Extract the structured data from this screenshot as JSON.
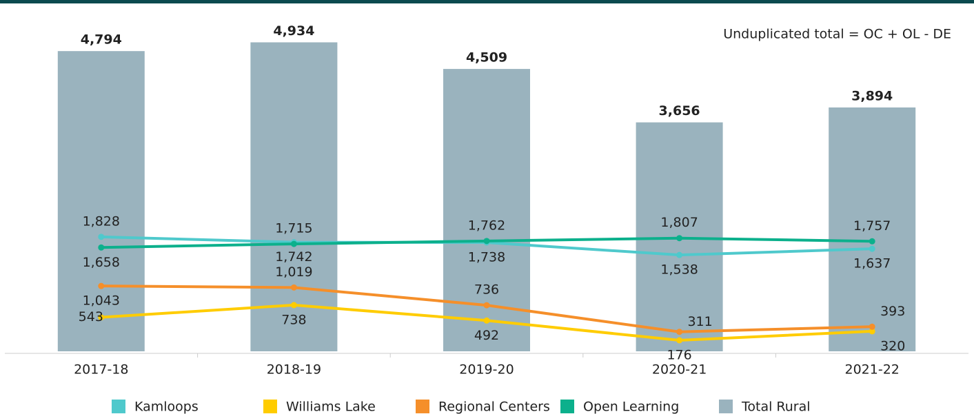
{
  "chart_data": {
    "type": "bar",
    "annotation": "Unduplicated total = OC + OL - DE",
    "categories": [
      "2017-18",
      "2018-19",
      "2019-20",
      "2020-21",
      "2021-22"
    ],
    "ylim": [
      0,
      5500
    ],
    "series": [
      {
        "name": "Kamloops",
        "type": "line",
        "color": "#4fc9cc",
        "values": [
          1828,
          1742,
          1738,
          1538,
          1637
        ],
        "value_labels": [
          "1,828",
          "1,742",
          "1,738",
          "1,538",
          "1,637"
        ]
      },
      {
        "name": "Williams Lake",
        "type": "line",
        "color": "#ffcc00",
        "values": [
          543,
          738,
          492,
          176,
          320
        ]
      },
      {
        "name": "Regional Centers",
        "type": "line",
        "color": "#f58f2a",
        "values": [
          1043,
          1019,
          736,
          311,
          393
        ],
        "value_labels": [
          "1,043",
          "1,019",
          "736",
          "311",
          "393"
        ]
      },
      {
        "name": "Open Learning",
        "type": "line",
        "color": "#0cb08c",
        "values": [
          1658,
          1715,
          1762,
          1807,
          1757
        ],
        "value_labels": [
          "1,658",
          "1,715",
          "1,762",
          "1,807",
          "1,757"
        ]
      },
      {
        "name": "Total Rural",
        "type": "bar",
        "color": "#9ab3be",
        "values": [
          4794,
          4934,
          4509,
          3656,
          3894
        ],
        "value_labels": [
          "4,794",
          "4,934",
          "4,509",
          "3,656",
          "3,894"
        ]
      }
    ]
  }
}
